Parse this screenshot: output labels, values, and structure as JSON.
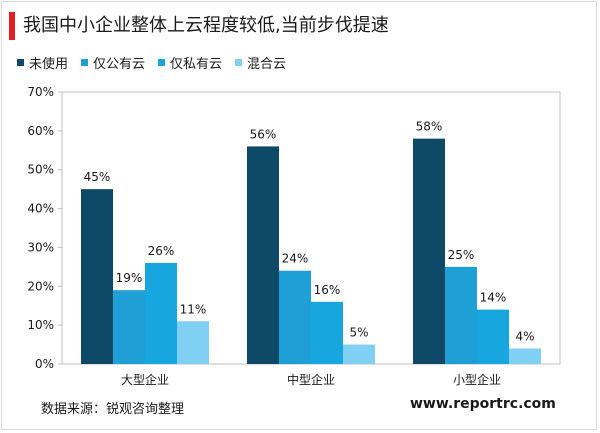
{
  "title": "我国中小企业整体上云程度较低,当前步伐提速",
  "source": "数据来源：锐观咨询整理",
  "watermark": "www.reportrc.com",
  "colors": {
    "accent_bar": "#e31f26",
    "series": [
      "#0e4a68",
      "#1e9fd6",
      "#18a6df",
      "#7fd0f3"
    ]
  },
  "chart_data": {
    "type": "bar",
    "categories": [
      "大型企业",
      "中型企业",
      "小型企业"
    ],
    "series": [
      {
        "name": "未使用",
        "values": [
          45,
          56,
          58
        ]
      },
      {
        "name": "仅公有云",
        "values": [
          19,
          24,
          25
        ]
      },
      {
        "name": "仅私有云",
        "values": [
          26,
          16,
          14
        ]
      },
      {
        "name": "混合云",
        "values": [
          11,
          5,
          4
        ]
      }
    ],
    "value_labels": [
      [
        "45%",
        "56%",
        "58%"
      ],
      [
        "19%",
        "24%",
        "25%"
      ],
      [
        "26%",
        "16%",
        "14%"
      ],
      [
        "11%",
        "5%",
        "4%"
      ]
    ],
    "ylim": [
      0,
      70
    ],
    "yticks": [
      0,
      10,
      20,
      30,
      40,
      50,
      60,
      70
    ],
    "ytick_labels": [
      "0%",
      "10%",
      "20%",
      "30%",
      "40%",
      "50%",
      "60%",
      "70%"
    ],
    "legend_position": "top-left",
    "grid": false
  }
}
